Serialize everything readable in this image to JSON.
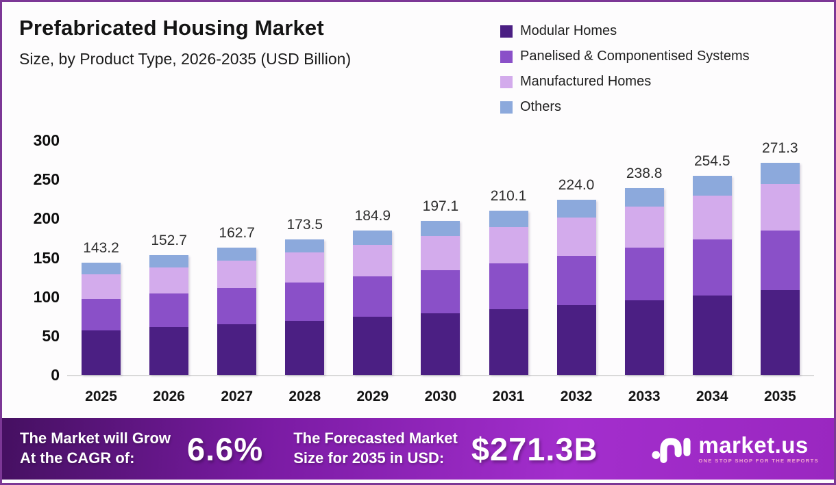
{
  "page": {
    "title": "Prefabricated Housing Market",
    "subtitle": "Size, by Product Type, 2026-2035 (USD Billion)"
  },
  "legend": {
    "position": "top-right",
    "items": [
      {
        "label": "Modular Homes",
        "color": "#4b1f83"
      },
      {
        "label": "Panelised & Componentised Systems",
        "color": "#8a50c8"
      },
      {
        "label": "Manufactured Homes",
        "color": "#d3abec"
      },
      {
        "label": "Others",
        "color": "#8ca9dc"
      }
    ]
  },
  "chart_data": {
    "type": "bar",
    "stacked": true,
    "title": "Prefabricated Housing Market Size, by Product Type, 2026-2035 (USD Billion)",
    "categories": [
      "2025",
      "2026",
      "2027",
      "2028",
      "2029",
      "2030",
      "2031",
      "2032",
      "2033",
      "2034",
      "2035"
    ],
    "totals": [
      143.2,
      152.7,
      162.7,
      173.5,
      184.9,
      197.1,
      210.1,
      224.0,
      238.8,
      254.5,
      271.3
    ],
    "series": [
      {
        "name": "Modular Homes",
        "color": "#4b1f83",
        "values": [
          57.3,
          61.1,
          65.1,
          69.4,
          74.0,
          78.8,
          84.0,
          89.6,
          95.5,
          101.8,
          108.5
        ]
      },
      {
        "name": "Panelised & Componentised Systems",
        "color": "#8a50c8",
        "values": [
          40.1,
          42.8,
          45.6,
          48.6,
          51.8,
          55.2,
          58.8,
          62.7,
          66.9,
          71.3,
          76.0
        ]
      },
      {
        "name": "Manufactured Homes",
        "color": "#d3abec",
        "values": [
          31.5,
          33.6,
          35.8,
          38.2,
          40.7,
          43.4,
          46.2,
          49.3,
          52.5,
          56.0,
          59.7
        ]
      },
      {
        "name": "Others",
        "color": "#8ca9dc",
        "values": [
          14.3,
          15.2,
          16.2,
          17.3,
          18.4,
          19.7,
          21.1,
          22.4,
          23.9,
          25.4,
          27.1
        ]
      }
    ],
    "xlabel": "",
    "ylabel": "",
    "ylim": [
      0,
      300
    ],
    "yticks": [
      300,
      250,
      200,
      150,
      100,
      50,
      0
    ],
    "grid": false,
    "legend_position": "top-right",
    "value_label_decimals": 1
  },
  "banner": {
    "cagr_caption": "The Market will Grow\nAt the CAGR of:",
    "cagr_value": "6.6%",
    "forecast_caption": "The Forecasted Market\nSize for 2035 in USD:",
    "forecast_value": "$271.3B",
    "brand_name": "market.us",
    "brand_tagline": "ONE STOP SHOP FOR THE REPORTS"
  },
  "colors": {
    "page_border": "#7c3796",
    "banner_gradient_start": "#451061",
    "banner_gradient_mid": "#a32ecd",
    "banner_gradient_end": "#9a27c0",
    "axis_baseline": "#d9d9d9",
    "title_text": "#141414",
    "banner_text": "#ffffff",
    "brand_tagline_text": "#f1a7ce"
  }
}
